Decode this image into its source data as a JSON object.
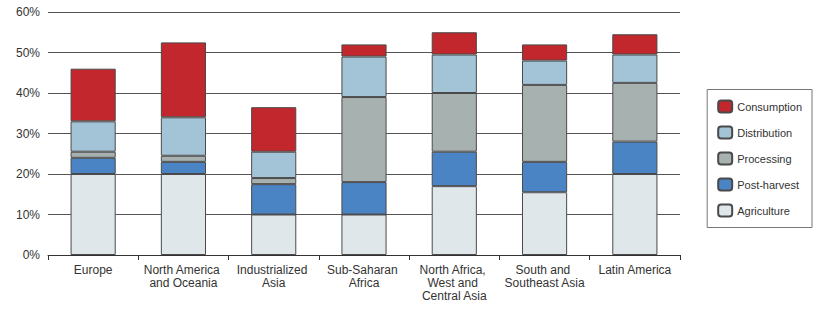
{
  "chart_data": {
    "type": "bar",
    "stacked": true,
    "grid": true,
    "legend": "right",
    "categories": [
      "Europe",
      "North America and Oceania",
      "Industrialized Asia",
      "Sub-Saharan Africa",
      "North Africa, West and Central Asia",
      "South and Southeast Asia",
      "Latin America"
    ],
    "ylim": [
      0,
      60
    ],
    "yticks": [
      {
        "value": 0,
        "label": "0%"
      },
      {
        "value": 10,
        "label": "10%"
      },
      {
        "value": 20,
        "label": "20%"
      },
      {
        "value": 30,
        "label": "30%"
      },
      {
        "value": 40,
        "label": "40%"
      },
      {
        "value": 50,
        "label": "50%"
      },
      {
        "value": 60,
        "label": "60%"
      }
    ],
    "series": [
      {
        "name": "Agriculture",
        "color": "#dfe7eb",
        "values": [
          20,
          20,
          10,
          10,
          17,
          15.5,
          20
        ]
      },
      {
        "name": "Post-harvest",
        "color": "#4a84c4",
        "values": [
          4,
          3,
          7.5,
          8,
          8.5,
          7.5,
          8
        ]
      },
      {
        "name": "Processing",
        "color": "#a7b2b0",
        "values": [
          1.5,
          1.5,
          1.5,
          21,
          14.5,
          19,
          14.5
        ]
      },
      {
        "name": "Distribution",
        "color": "#a2c4d6",
        "values": [
          7.5,
          9.5,
          6.5,
          10,
          9.5,
          6,
          7
        ]
      },
      {
        "name": "Consumption",
        "color": "#c1272d",
        "values": [
          13,
          18.5,
          11,
          3,
          5.5,
          4,
          5
        ]
      }
    ]
  }
}
